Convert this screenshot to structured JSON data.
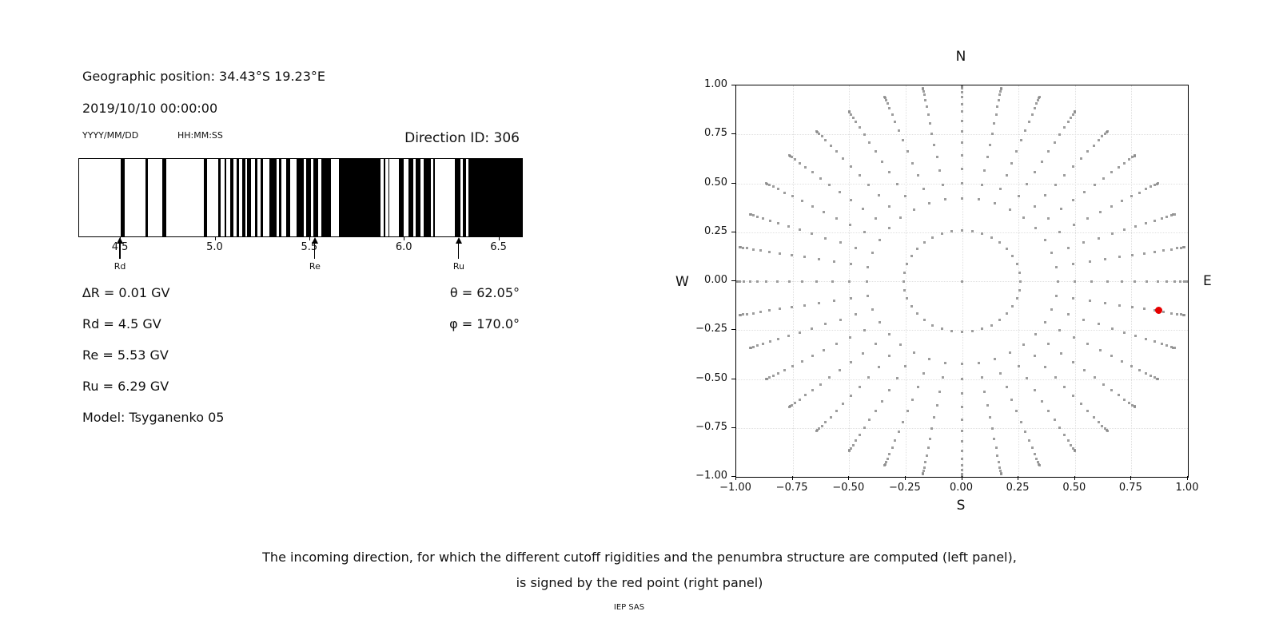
{
  "left_panel": {
    "geo_position": "Geographic position: 34.43°S 19.23°E",
    "datetime": "2019/10/10 00:00:00",
    "date_format_hint": "YYYY/MM/DD",
    "time_format_hint": "HH:MM:SS",
    "direction_id": "Direction ID: 306",
    "info_rows": {
      "delta_r": "∆R = 0.01 GV",
      "rd": "Rd = 4.5 GV",
      "re": "Re = 5.53 GV",
      "ru": "Ru = 6.29 GV",
      "model": "Model: Tsyganenko 05",
      "theta": "θ = 62.05°",
      "phi": "φ = 170.0°"
    }
  },
  "caption": {
    "line1": "The incoming direction, for which the different cutoff rigidities and the penumbra structure are computed (left panel),",
    "line2": "is signed by the red point (right panel)"
  },
  "credit": "IEP SAS",
  "chart_data": [
    {
      "id": "penumbra-barcode",
      "type": "bar",
      "description": "Penumbra structure: black bands = allowed rigidities (GV)",
      "xlim": [
        4.28,
        6.62
      ],
      "unit": "GV",
      "delta_r_gv": 0.01,
      "xticks": [
        {
          "value": 4.5,
          "label": "4.5"
        },
        {
          "value": 5.0,
          "label": "5.0"
        },
        {
          "value": 5.5,
          "label": "5.5"
        },
        {
          "value": 6.0,
          "label": "6.0"
        },
        {
          "value": 6.5,
          "label": "6.5"
        }
      ],
      "allowed_bands_gv": [
        [
          4.5,
          4.52
        ],
        [
          4.63,
          4.645
        ],
        [
          4.72,
          4.74
        ],
        [
          4.94,
          4.955
        ],
        [
          5.013,
          5.028
        ],
        [
          5.048,
          5.058
        ],
        [
          5.076,
          5.095
        ],
        [
          5.112,
          5.126
        ],
        [
          5.14,
          5.157
        ],
        [
          5.168,
          5.189
        ],
        [
          5.208,
          5.222
        ],
        [
          5.239,
          5.253
        ],
        [
          5.284,
          5.323
        ],
        [
          5.334,
          5.349
        ],
        [
          5.372,
          5.393
        ],
        [
          5.429,
          5.467
        ],
        [
          5.48,
          5.505
        ],
        [
          5.519,
          5.543
        ],
        [
          5.561,
          5.609
        ],
        [
          5.651,
          5.871
        ],
        [
          5.888,
          5.9
        ],
        [
          5.913,
          5.919
        ],
        [
          5.97,
          5.994
        ],
        [
          6.018,
          6.046
        ],
        [
          6.06,
          6.082
        ],
        [
          6.102,
          6.137
        ],
        [
          6.152,
          6.156
        ],
        [
          6.266,
          6.297
        ],
        [
          6.308,
          6.323
        ],
        [
          6.337,
          6.62
        ]
      ],
      "markers": [
        {
          "label": "Rd",
          "value_gv": 4.5
        },
        {
          "label": "Re",
          "value_gv": 5.53
        },
        {
          "label": "Ru",
          "value_gv": 6.29
        }
      ]
    },
    {
      "id": "incoming-directions",
      "type": "scatter",
      "description": "Grid of incoming directions (gray dots); selected direction in red",
      "xlim": [
        -1,
        1
      ],
      "ylim": [
        -1,
        1
      ],
      "xticks": [
        {
          "value": -1.0,
          "label": "−1.00"
        },
        {
          "value": -0.75,
          "label": "−0.75"
        },
        {
          "value": -0.5,
          "label": "−0.50"
        },
        {
          "value": -0.25,
          "label": "−0.25"
        },
        {
          "value": 0.0,
          "label": "0.00"
        },
        {
          "value": 0.25,
          "label": "0.25"
        },
        {
          "value": 0.5,
          "label": "0.50"
        },
        {
          "value": 0.75,
          "label": "0.75"
        },
        {
          "value": 1.0,
          "label": "1.00"
        }
      ],
      "yticks": [
        {
          "value": 1.0,
          "label": "1.00"
        },
        {
          "value": 0.75,
          "label": "0.75"
        },
        {
          "value": 0.5,
          "label": "0.50"
        },
        {
          "value": 0.25,
          "label": "0.25"
        },
        {
          "value": 0.0,
          "label": "0.00"
        },
        {
          "value": -0.25,
          "label": "−0.25"
        },
        {
          "value": -0.5,
          "label": "−0.50"
        },
        {
          "value": -0.75,
          "label": "−0.75"
        },
        {
          "value": -1.0,
          "label": "−1.00"
        }
      ],
      "compass": {
        "top": "N",
        "bottom": "S",
        "left": "W",
        "right": "E"
      },
      "grid": {
        "style": "dotted",
        "color": "#e0e0e0",
        "step": 0.25
      },
      "dot_color": "#8c8c8c",
      "spokes": {
        "azimuth_count": 36,
        "azimuth_step_deg": 10,
        "radii": [
          0.259,
          0.423,
          0.5,
          0.574,
          0.643,
          0.707,
          0.766,
          0.819,
          0.866,
          0.906,
          0.94,
          0.966,
          0.985,
          0.996,
          1.0
        ]
      },
      "center_dot": {
        "x": 0,
        "y": 0
      },
      "selected_direction": {
        "x": 0.872,
        "y": -0.148,
        "color": "#e60000",
        "theta_deg": 62.05,
        "phi_deg": 170.0
      }
    }
  ]
}
